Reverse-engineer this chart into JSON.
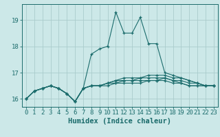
{
  "title": "",
  "xlabel": "Humidex (Indice chaleur)",
  "bg_color": "#cce8e8",
  "grid_color": "#aacccc",
  "line_color": "#1a6b6b",
  "xlim": [
    -0.5,
    23.5
  ],
  "ylim": [
    15.7,
    19.6
  ],
  "yticks": [
    16,
    17,
    18,
    19
  ],
  "xticks": [
    0,
    1,
    2,
    3,
    4,
    5,
    6,
    7,
    8,
    9,
    10,
    11,
    12,
    13,
    14,
    15,
    16,
    17,
    18,
    19,
    20,
    21,
    22,
    23
  ],
  "lines": [
    [
      16.0,
      16.3,
      16.4,
      16.5,
      16.4,
      16.2,
      15.9,
      16.4,
      17.7,
      17.9,
      18.0,
      19.3,
      18.5,
      18.5,
      19.1,
      18.1,
      18.1,
      17.0,
      16.9,
      16.8,
      16.7,
      16.6,
      16.5,
      16.5
    ],
    [
      16.0,
      16.3,
      16.4,
      16.5,
      16.4,
      16.2,
      15.9,
      16.4,
      16.5,
      16.5,
      16.5,
      16.6,
      16.6,
      16.6,
      16.6,
      16.7,
      16.7,
      16.7,
      16.6,
      16.6,
      16.5,
      16.5,
      16.5,
      16.5
    ],
    [
      16.0,
      16.3,
      16.4,
      16.5,
      16.4,
      16.2,
      15.9,
      16.4,
      16.5,
      16.5,
      16.6,
      16.6,
      16.7,
      16.7,
      16.7,
      16.7,
      16.7,
      16.8,
      16.7,
      16.6,
      16.5,
      16.5,
      16.5,
      16.5
    ],
    [
      16.0,
      16.3,
      16.4,
      16.5,
      16.4,
      16.2,
      15.9,
      16.4,
      16.5,
      16.5,
      16.6,
      16.7,
      16.7,
      16.7,
      16.8,
      16.8,
      16.8,
      16.8,
      16.7,
      16.7,
      16.6,
      16.6,
      16.5,
      16.5
    ],
    [
      16.0,
      16.3,
      16.4,
      16.5,
      16.4,
      16.2,
      15.9,
      16.4,
      16.5,
      16.5,
      16.6,
      16.7,
      16.8,
      16.8,
      16.8,
      16.9,
      16.9,
      16.9,
      16.8,
      16.8,
      16.7,
      16.6,
      16.5,
      16.5
    ]
  ],
  "tick_fontsize": 6.5,
  "xlabel_fontsize": 7.5
}
